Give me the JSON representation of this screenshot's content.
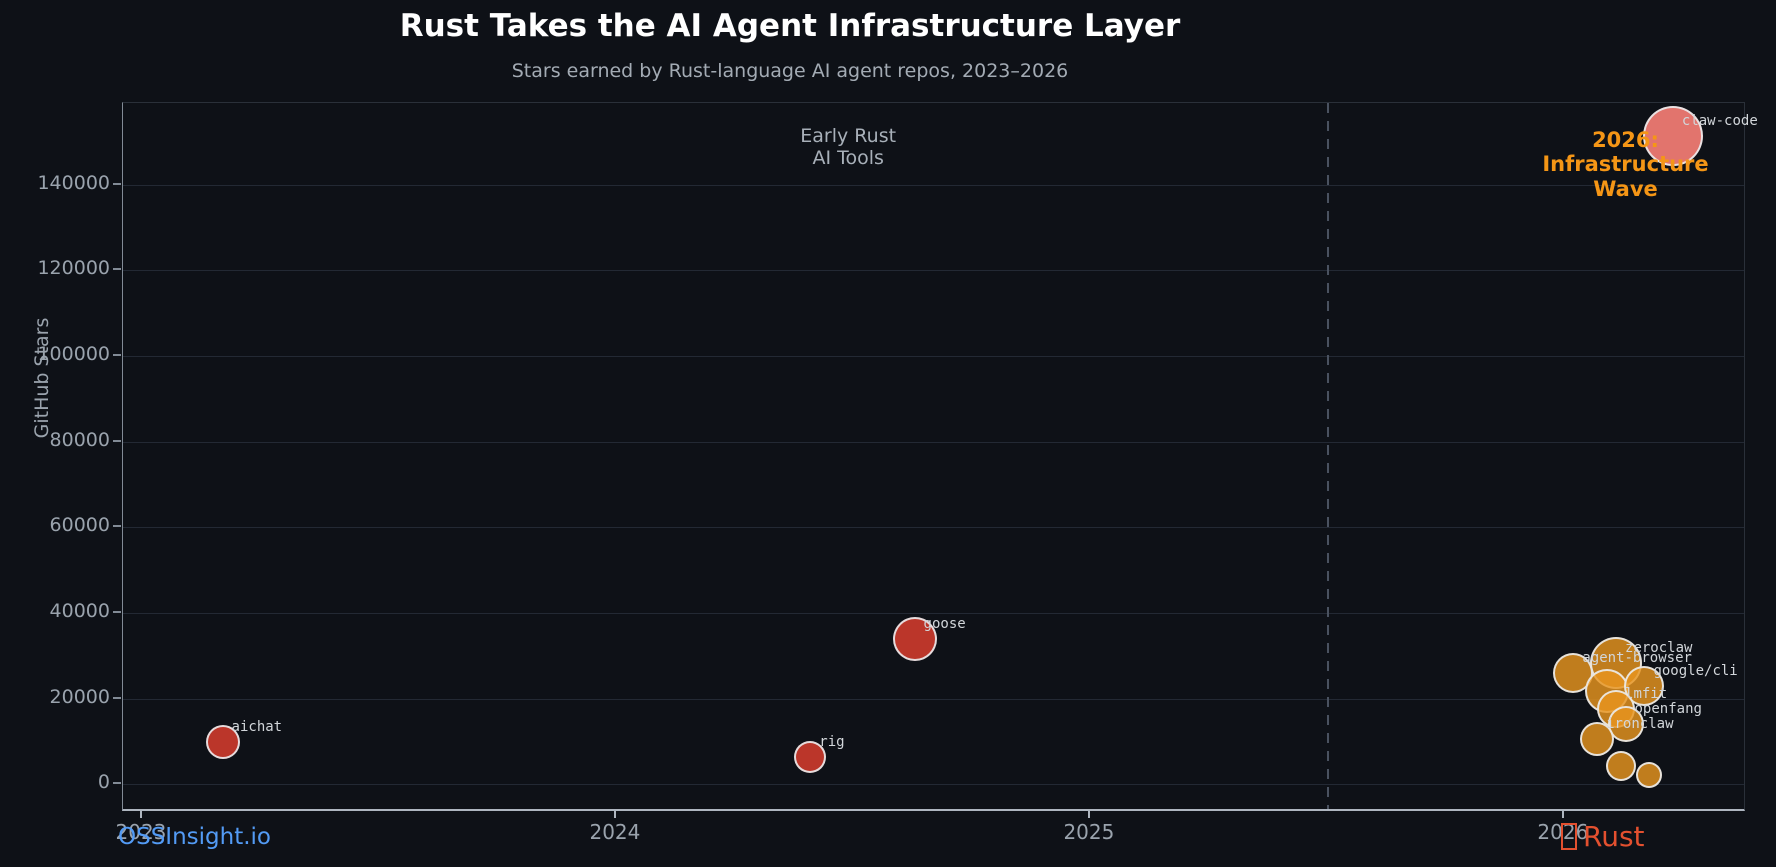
{
  "header": {
    "title": "Rust Takes the AI Agent Infrastructure Layer",
    "subtitle": "Stars earned by Rust-language AI agent repos, 2023–2026"
  },
  "footer": {
    "watermark": "OSSInsight.io",
    "logo_text": "Rust"
  },
  "palette": {
    "early_red": "rgba(197,57,43,0.95)",
    "wave_orange": "rgba(232,149,31,0.82)",
    "claw_salmon": "rgba(238,122,114,0.95)",
    "annotation_gray": "#a8b0b9",
    "annotation_orange": "#f59616",
    "link_blue": "#539bf5",
    "rust_red": "#e3502f",
    "grid": "#232934",
    "dashed_line": "#4a5260"
  },
  "chart_data": {
    "type": "scatter",
    "title": "Rust Takes the AI Agent Infrastructure Layer",
    "subtitle": "Stars earned by Rust-language AI agent repos, 2023–2026",
    "xlabel": "",
    "ylabel": "GitHub Stars",
    "xlim": [
      2022.96,
      2026.38
    ],
    "ylim": [
      -5800,
      159100
    ],
    "x_ticks": [
      2023,
      2024,
      2025,
      2026
    ],
    "y_ticks": [
      0,
      20000,
      40000,
      60000,
      80000,
      100000,
      120000,
      140000
    ],
    "grid": "horizontal",
    "legend": "none",
    "vline": {
      "x": 2025.5,
      "style": "dashed"
    },
    "annotations": [
      {
        "text": "Early Rust\nAI Tools",
        "x": 2024.49,
        "y": 148500,
        "color_key": "annotation_gray",
        "bold": false,
        "size": 19
      },
      {
        "text": "2026: Infrastructure\nWave",
        "x": 2026.13,
        "y": 144800,
        "color_key": "annotation_orange",
        "bold": true,
        "size": 21
      }
    ],
    "points": [
      {
        "label": "aichat",
        "x": 2023.17,
        "y": 9800,
        "r": 17,
        "color_key": "early_red"
      },
      {
        "label": "rig",
        "x": 2024.41,
        "y": 6400,
        "r": 16,
        "color_key": "early_red"
      },
      {
        "label": "goose",
        "x": 2024.63,
        "y": 34000,
        "r": 22,
        "color_key": "early_red"
      },
      {
        "label": "agent-browser",
        "x": 2026.02,
        "y": 26000,
        "r": 20,
        "color_key": "wave_orange"
      },
      {
        "label": "zeroclaw",
        "x": 2026.11,
        "y": 28400,
        "r": 26,
        "color_key": "wave_orange"
      },
      {
        "label": "",
        "x": 2026.09,
        "y": 21700,
        "r": 22,
        "color_key": "wave_orange"
      },
      {
        "label": "google/cli",
        "x": 2026.17,
        "y": 23000,
        "r": 20,
        "color_key": "wave_orange"
      },
      {
        "label": "lmfit",
        "x": 2026.11,
        "y": 17500,
        "r": 19,
        "color_key": "wave_orange"
      },
      {
        "label": "openfang",
        "x": 2026.13,
        "y": 14000,
        "r": 18,
        "color_key": "wave_orange"
      },
      {
        "label": "ironclaw",
        "x": 2026.07,
        "y": 10500,
        "r": 17,
        "color_key": "wave_orange"
      },
      {
        "label": "",
        "x": 2026.12,
        "y": 4200,
        "r": 15,
        "color_key": "wave_orange"
      },
      {
        "label": "",
        "x": 2026.18,
        "y": 2100,
        "r": 13,
        "color_key": "wave_orange"
      },
      {
        "label": "claw-code",
        "x": 2026.23,
        "y": 151500,
        "r": 30,
        "color_key": "claw_salmon"
      }
    ]
  }
}
